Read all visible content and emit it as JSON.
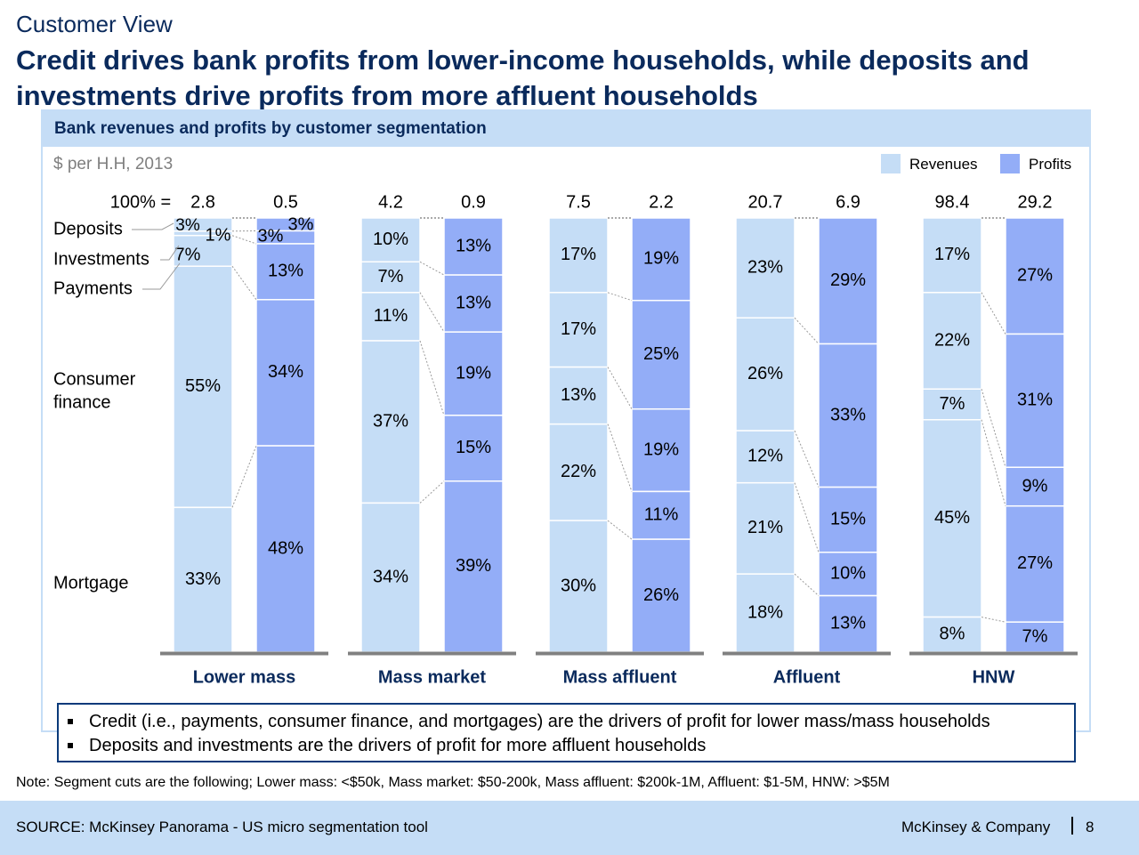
{
  "header": {
    "section": "Customer View",
    "headline": "Credit drives bank profits from lower-income households, while deposits and investments drive profits from more affluent households"
  },
  "panel": {
    "title": "Bank revenues and profits by customer segmentation",
    "unit": "$ per H.H, 2013"
  },
  "legend": {
    "revenues": "Revenues",
    "profits": "Profits"
  },
  "colors": {
    "revenues": "#c5ddf6",
    "profits": "#93adf7",
    "axis": "#808080",
    "title": "#0a2a5c"
  },
  "chart_data": {
    "type": "bar",
    "stacked": "100%",
    "total_prefix": "100% =",
    "categories": [
      "Lower mass",
      "Mass market",
      "Mass affluent",
      "Affluent",
      "HNW"
    ],
    "components": [
      "Deposits",
      "Investments",
      "Payments",
      "Consumer finance",
      "Mortgage"
    ],
    "row_labels": [
      "Deposits",
      "Investments",
      "Payments",
      "Consumer",
      "finance",
      "Mortgage"
    ],
    "series": [
      {
        "name": "Revenues",
        "totals": [
          "2.8",
          "4.2",
          "7.5",
          "20.7",
          "98.4"
        ],
        "values": [
          [
            3,
            1,
            7,
            55,
            33
          ],
          [
            10,
            7,
            11,
            37,
            34
          ],
          [
            17,
            17,
            13,
            22,
            30
          ],
          [
            23,
            26,
            12,
            21,
            18
          ],
          [
            17,
            22,
            7,
            45,
            8
          ]
        ],
        "labels": [
          [
            "3%",
            "1%",
            "7%",
            "55%",
            "33%"
          ],
          [
            "10%",
            "7%",
            "11%",
            "37%",
            "34%"
          ],
          [
            "17%",
            "17%",
            "13%",
            "22%",
            "30%"
          ],
          [
            "23%",
            "26%",
            "12%",
            "21%",
            "18%"
          ],
          [
            "17%",
            "22%",
            "7%",
            "45%",
            "8%"
          ]
        ]
      },
      {
        "name": "Profits",
        "totals": [
          "0.5",
          "0.9",
          "2.2",
          "6.9",
          "29.2"
        ],
        "values": [
          [
            3,
            3,
            13,
            34,
            48
          ],
          [
            13,
            13,
            19,
            15,
            39
          ],
          [
            19,
            25,
            19,
            11,
            26
          ],
          [
            29,
            33,
            15,
            10,
            13
          ],
          [
            27,
            31,
            9,
            27,
            7
          ]
        ],
        "labels": [
          [
            "3%",
            "3%",
            "13%",
            "34%",
            "48%"
          ],
          [
            "13%",
            "13%",
            "19%",
            "15%",
            "39%"
          ],
          [
            "19%",
            "25%",
            "19%",
            "11%",
            "26%"
          ],
          [
            "29%",
            "33%",
            "15%",
            "10%",
            "13%"
          ],
          [
            "27%",
            "31%",
            "9%",
            "27%",
            "7%"
          ]
        ]
      }
    ]
  },
  "callout": {
    "bullets": [
      "Credit (i.e., payments, consumer finance, and mortgages) are the drivers of profit for lower mass/mass households",
      "Deposits and investments are the drivers of profit for more affluent households"
    ]
  },
  "note": "Note: Segment cuts are the following; Lower mass: <$50k, Mass market: $50-200k, Mass affluent: $200k-1M, Affluent: $1-5M, HNW: >$5M",
  "footer": {
    "source": "SOURCE: McKinsey Panorama - US micro segmentation tool",
    "company": "McKinsey & Company",
    "page": "8"
  }
}
